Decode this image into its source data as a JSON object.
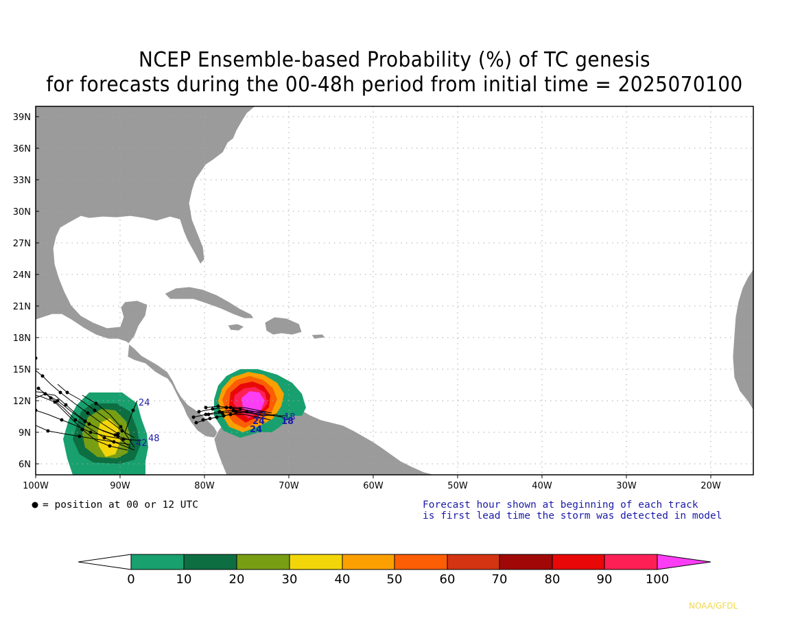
{
  "title_line1": "NCEP Ensemble-based Probability (%) of TC genesis",
  "title_line2": "for forecasts during the 00-48h period from initial time = 2025070100",
  "lat_labels": [
    "39N",
    "36N",
    "33N",
    "30N",
    "27N",
    "24N",
    "21N",
    "18N",
    "15N",
    "12N",
    "9N",
    "6N"
  ],
  "lon_labels": [
    "100W",
    "90W",
    "80W",
    "70W",
    "60W",
    "50W",
    "40W",
    "30W",
    "20W"
  ],
  "position_legend": "= position at 00 or 12 UTC",
  "note_line1": "Forecast hour shown at beginning of each track",
  "note_line2": "is first lead time the storm was detected in model",
  "credit": "NOAA/GFDL",
  "track_labels": [
    "24",
    "42",
    "48",
    "24",
    "18",
    "12",
    "18",
    "24"
  ],
  "colorbar": {
    "ticks": [
      "0",
      "10",
      "20",
      "30",
      "40",
      "50",
      "60",
      "70",
      "80",
      "90",
      "100"
    ],
    "colors": [
      "#ffffff",
      "#18a06e",
      "#0d6e42",
      "#789e13",
      "#f2d60a",
      "#fba000",
      "#fb5e05",
      "#d43412",
      "#a00808",
      "#e80808",
      "#fc2055",
      "#fb3ef5"
    ]
  },
  "map": {
    "land_color": "#9b9b9b",
    "ocean_color": "#ffffff",
    "lon_range": [
      -100,
      -15
    ],
    "lat_range": [
      5,
      40
    ]
  }
}
